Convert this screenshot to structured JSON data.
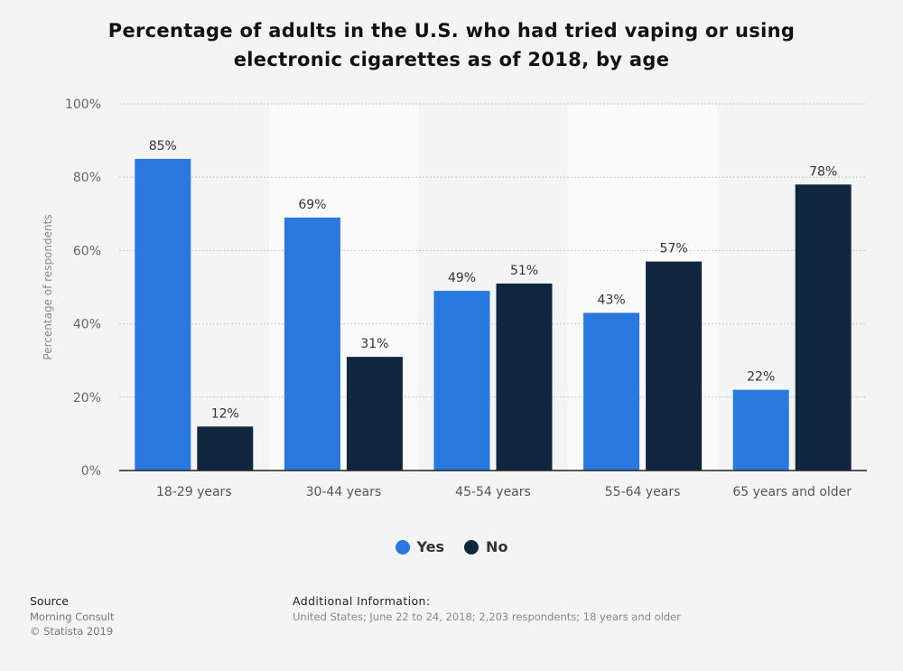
{
  "chart_data": {
    "type": "bar",
    "title": "Percentage of adults in the U.S. who had tried vaping or using electronic cigarettes as of 2018, by age",
    "title_lines": [
      "Percentage of adults in the U.S. who had tried vaping or using",
      "electronic cigarettes as of 2018, by age"
    ],
    "ylabel": "Percentage of respondents",
    "xlabel": "",
    "ylim": [
      0,
      100
    ],
    "yticks": [
      "0%",
      "20%",
      "40%",
      "60%",
      "80%",
      "100%"
    ],
    "ytick_values": [
      0,
      20,
      40,
      60,
      80,
      100
    ],
    "grid": true,
    "legend_position": "bottom-center",
    "categories": [
      "18-29 years",
      "30-44 years",
      "45-54 years",
      "55-64 years",
      "65 years and older"
    ],
    "series": [
      {
        "name": "Yes",
        "color": "#2878e0",
        "values": [
          85,
          69,
          49,
          43,
          22
        ],
        "labels": [
          "85%",
          "69%",
          "49%",
          "43%",
          "22%"
        ]
      },
      {
        "name": "No",
        "color": "#10263f",
        "values": [
          12,
          31,
          51,
          57,
          78
        ],
        "labels": [
          "12%",
          "31%",
          "51%",
          "57%",
          "78%"
        ]
      }
    ]
  },
  "footer": {
    "source_label": "Source",
    "source_lines": [
      "Morning Consult",
      "© Statista 2019"
    ],
    "additional_label": "Additional Information:",
    "additional_text": "United States; June 22 to 24, 2018; 2,203 respondents; 18 years and older"
  }
}
